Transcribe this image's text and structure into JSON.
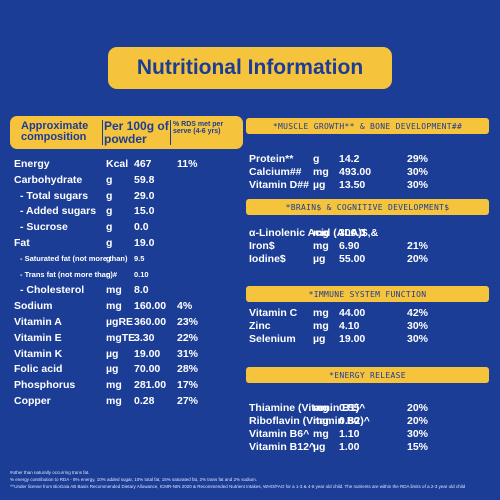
{
  "title": "Nutritional Information",
  "header": {
    "col1": "Approximate composition",
    "col2": "Per 100g of powder",
    "col3": "% RDS met per serve (4-6 yrs)"
  },
  "left_rows": [
    {
      "name": "Energy",
      "unit": "Kcal",
      "value": "467",
      "pct": "11%"
    },
    {
      "name": "Carbohydrate",
      "unit": "g",
      "value": "59.8",
      "pct": ""
    },
    {
      "name": "- Total sugars",
      "unit": "g",
      "value": "29.0",
      "pct": ""
    },
    {
      "name": "- Added sugars",
      "unit": "g",
      "value": "15.0",
      "pct": ""
    },
    {
      "name": "- Sucrose",
      "unit": "g",
      "value": "0.0",
      "pct": ""
    },
    {
      "name": "Fat",
      "unit": "g",
      "value": "19.0",
      "pct": ""
    },
    {
      "name": "- Saturated fat (not more than)",
      "unit": "g",
      "value": "9.5",
      "pct": ""
    },
    {
      "name": "- Trans fat (not more than)#",
      "unit": "g",
      "value": "0.10",
      "pct": ""
    },
    {
      "name": "- Cholesterol",
      "unit": "mg",
      "value": "8.0",
      "pct": ""
    },
    {
      "name": "Sodium",
      "unit": "mg",
      "value": "160.00",
      "pct": "4%"
    },
    {
      "name": "Vitamin A",
      "unit": "µgRE",
      "value": "360.00",
      "pct": "23%"
    },
    {
      "name": "Vitamin E",
      "unit": "mgTE",
      "value": "3.30",
      "pct": "22%"
    },
    {
      "name": "Vitamin K",
      "unit": "µg",
      "value": "19.00",
      "pct": "31%"
    },
    {
      "name": "Folic acid",
      "unit": "µg",
      "value": "70.00",
      "pct": "28%"
    },
    {
      "name": "Phosphorus",
      "unit": "mg",
      "value": "281.00",
      "pct": "17%"
    },
    {
      "name": "Copper",
      "unit": "mg",
      "value": "0.28",
      "pct": "27%"
    }
  ],
  "sections": [
    {
      "title": "*MUSCLE GROWTH** & BONE DEVELOPMENT##",
      "rows": [
        {
          "name": "Protein**",
          "unit": "g",
          "value": "14.2",
          "pct": "29%"
        },
        {
          "name": "Calcium##",
          "unit": "mg",
          "value": "493.00",
          "pct": "30%"
        },
        {
          "name": "Vitamin D##",
          "unit": "µg",
          "value": "13.50",
          "pct": "30%"
        }
      ]
    },
    {
      "title": "*BRAIN$ & COGNITIVE DEVELOPMENT$",
      "rows": [
        {
          "name": "α-Linolenic Acid (ALA)$,&",
          "unit": "mg",
          "value": "300.0",
          "pct": ""
        },
        {
          "name": "Iron$",
          "unit": "mg",
          "value": "6.90",
          "pct": "21%"
        },
        {
          "name": "Iodine$",
          "unit": "µg",
          "value": "55.00",
          "pct": "20%"
        }
      ]
    },
    {
      "title": "*IMMUNE SYSTEM FUNCTION",
      "rows": [
        {
          "name": "Vitamin C",
          "unit": "mg",
          "value": "44.00",
          "pct": "42%"
        },
        {
          "name": "Zinc",
          "unit": "mg",
          "value": "4.10",
          "pct": "30%"
        },
        {
          "name": "Selenium",
          "unit": "µg",
          "value": "19.00",
          "pct": "30%"
        }
      ]
    },
    {
      "title": "*ENERGY RELEASE",
      "rows": [
        {
          "name": "Thiamine (Vitamin B1)^",
          "unit": "mg",
          "value": "0.55",
          "pct": "20%"
        },
        {
          "name": "Riboflavin (Vitamin B2)^",
          "unit": "mg",
          "value": "0.80",
          "pct": "20%"
        },
        {
          "name": "Vitamin B6^",
          "unit": "mg",
          "value": "1.10",
          "pct": "30%"
        },
        {
          "name": "Vitamin B12^",
          "unit": "µg",
          "value": "1.00",
          "pct": "15%"
        }
      ]
    }
  ],
  "footnotes": [
    "#other than naturally occurring trans fat.",
    "% energy contribution to RDA - 8% energy, 10% added sugar, 10% total fat, 15% saturated fat, 2% trans fat and 2% sodium.",
    "^^Under license from BioGaia AB Basis Recommended Dietary Allowance, ICMR-NIN 2020 & Recommended Nutrient Intakes, WHO/FAO for a 1-3 & 4-6 year old child. The nutrients are within the RDA limits of a 2-3 year old child"
  ],
  "colors": {
    "background": "#1c3d96",
    "accent": "#f6c33c"
  }
}
